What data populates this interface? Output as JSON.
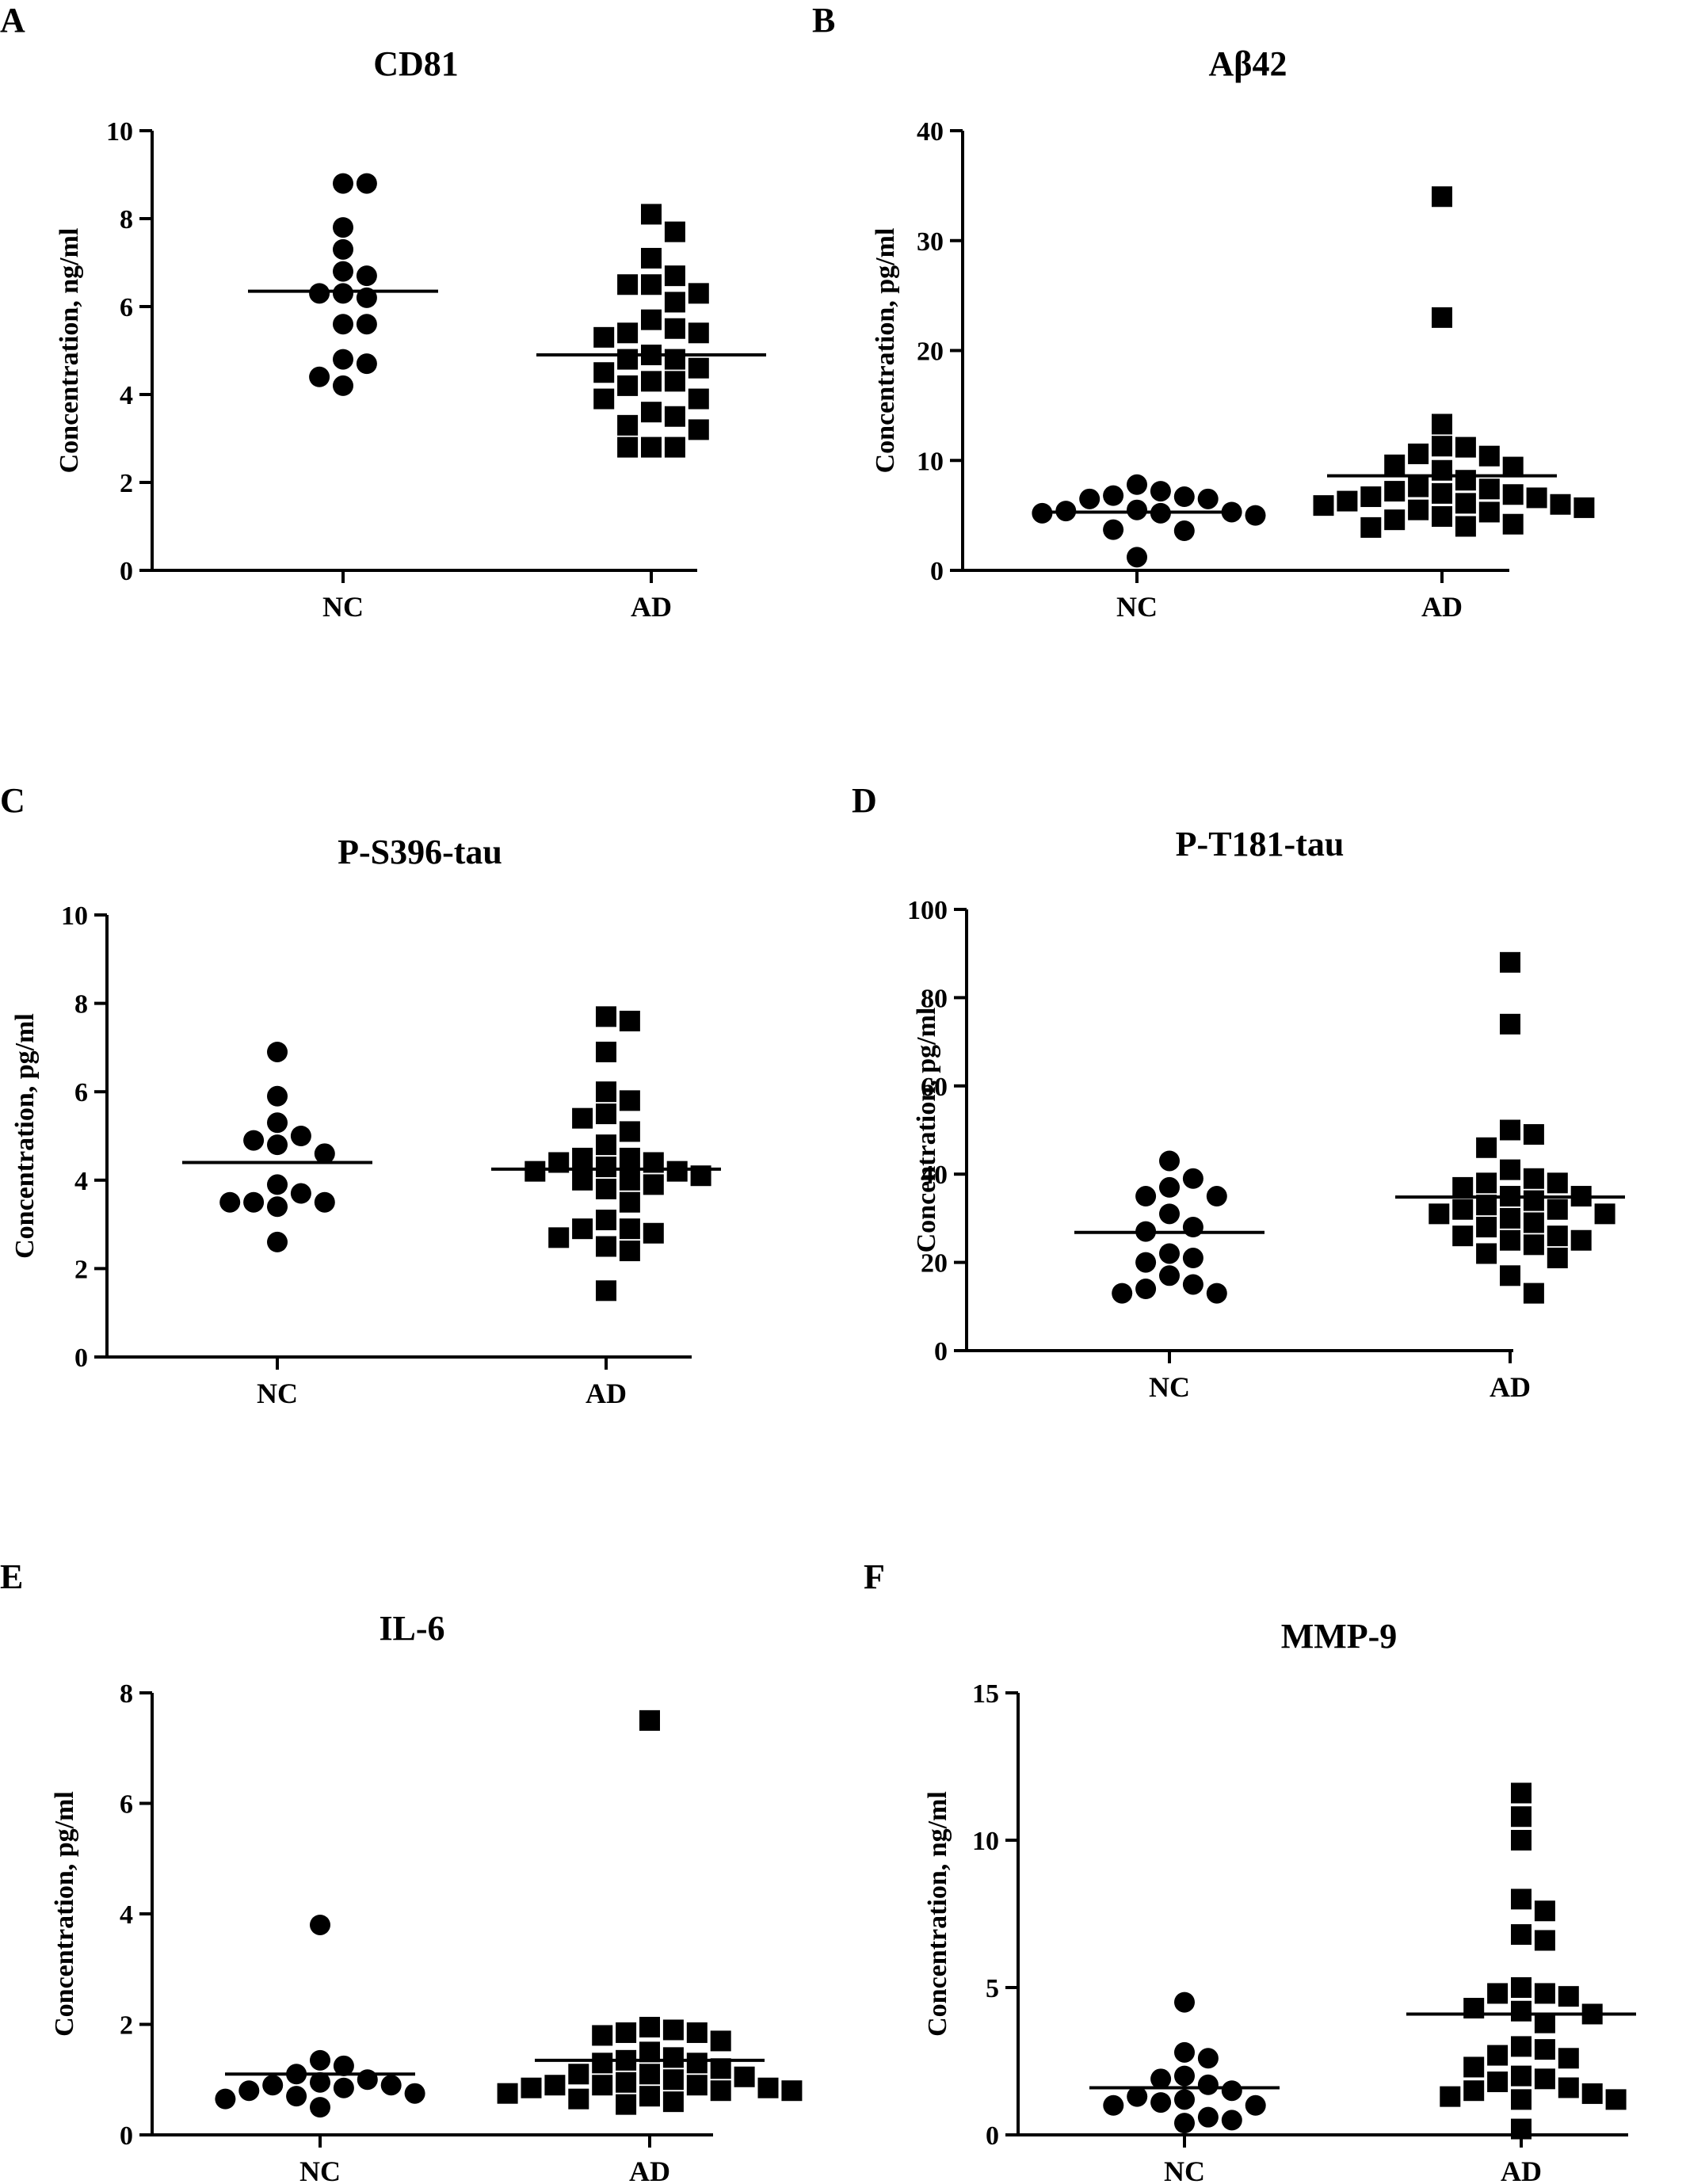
{
  "chart_data": [
    {
      "type": "scatter",
      "panel": "A",
      "title": "CD81",
      "ylabel": "Concentration, ng/ml",
      "categories": [
        "NC",
        "AD"
      ],
      "ylim": [
        0,
        10
      ],
      "yticks": [
        0,
        2,
        4,
        6,
        8,
        10
      ],
      "series": [
        {
          "name": "NC",
          "marker": "circle",
          "values": [
            8.8,
            8.8,
            7.8,
            7.3,
            6.8,
            6.7,
            6.3,
            6.2,
            6.3,
            5.6,
            5.6,
            4.8,
            4.7,
            4.4,
            4.2
          ],
          "mean": 6.35
        },
        {
          "name": "AD",
          "marker": "square",
          "values": [
            8.1,
            7.7,
            7.1,
            6.7,
            6.5,
            6.5,
            6.3,
            6.1,
            5.7,
            5.5,
            5.4,
            5.4,
            5.3,
            4.9,
            4.8,
            4.8,
            4.6,
            4.5,
            4.3,
            4.3,
            4.2,
            3.9,
            3.9,
            3.6,
            3.5,
            3.3,
            3.2,
            2.8,
            2.8,
            2.8
          ],
          "mean": 4.9
        }
      ]
    },
    {
      "type": "scatter",
      "panel": "B",
      "title": "Aβ42",
      "ylabel": "Concentration, pg/ml",
      "categories": [
        "NC",
        "AD"
      ],
      "ylim": [
        0,
        40
      ],
      "yticks": [
        0,
        10,
        20,
        30,
        40
      ],
      "series": [
        {
          "name": "NC",
          "marker": "circle",
          "values": [
            7.2,
            7.8,
            6.8,
            6.7,
            6.5,
            6.5,
            5.5,
            5.4,
            5.3,
            5.2,
            5.2,
            5.0,
            3.7,
            3.6,
            1.2
          ],
          "mean": 5.3
        },
        {
          "name": "AD",
          "marker": "square",
          "values": [
            34.0,
            23.0,
            13.3,
            11.3,
            11.2,
            10.6,
            10.4,
            9.6,
            9.4,
            9.1,
            8.2,
            7.6,
            7.4,
            7.2,
            7.0,
            6.9,
            6.7,
            6.6,
            6.3,
            6.1,
            6.0,
            5.9,
            5.7,
            5.5,
            5.3,
            4.9,
            4.6,
            4.2,
            4.0,
            3.9
          ],
          "mean": 8.6
        }
      ]
    },
    {
      "type": "scatter",
      "panel": "C",
      "title": "P-S396-tau",
      "ylabel": "Concentration, pg/ml",
      "categories": [
        "NC",
        "AD"
      ],
      "ylim": [
        0,
        10
      ],
      "yticks": [
        0,
        2,
        4,
        6,
        8,
        10
      ],
      "series": [
        {
          "name": "NC",
          "marker": "circle",
          "values": [
            6.9,
            5.9,
            5.3,
            5.0,
            4.9,
            4.8,
            4.6,
            3.9,
            3.7,
            3.5,
            3.5,
            3.5,
            3.4,
            2.6
          ],
          "mean": 4.4
        },
        {
          "name": "AD",
          "marker": "square",
          "values": [
            7.7,
            7.6,
            6.9,
            6.0,
            5.8,
            5.5,
            5.4,
            5.1,
            4.8,
            4.5,
            4.5,
            4.4,
            4.4,
            4.3,
            4.2,
            4.2,
            4.1,
            4.0,
            4.0,
            3.9,
            3.8,
            3.5,
            3.1,
            2.9,
            2.9,
            2.8,
            2.7,
            2.5,
            2.4,
            1.5
          ],
          "mean": 4.25
        }
      ]
    },
    {
      "type": "scatter",
      "panel": "D",
      "title": "P-T181-tau",
      "ylabel": "Concentration, pg/ml",
      "categories": [
        "NC",
        "AD"
      ],
      "ylim": [
        0,
        100
      ],
      "yticks": [
        0,
        20,
        40,
        60,
        80,
        100
      ],
      "series": [
        {
          "name": "NC",
          "marker": "circle",
          "values": [
            43,
            39,
            37,
            35,
            35,
            31,
            28,
            27,
            22,
            21,
            20,
            17,
            15,
            14,
            13,
            13
          ],
          "mean": 26.8
        },
        {
          "name": "AD",
          "marker": "square",
          "values": [
            88,
            74,
            50,
            49,
            46,
            41,
            39,
            38,
            38,
            37,
            35,
            35,
            34,
            33,
            32,
            32,
            31,
            31,
            30,
            29,
            28,
            26,
            26,
            25,
            25,
            24,
            22,
            21,
            17,
            13
          ],
          "mean": 34.8
        }
      ]
    },
    {
      "type": "scatter",
      "panel": "E",
      "title": "IL-6",
      "ylabel": "Concentration, pg/ml",
      "categories": [
        "NC",
        "AD"
      ],
      "ylim": [
        0,
        8
      ],
      "yticks": [
        0,
        2,
        4,
        6,
        8
      ],
      "series": [
        {
          "name": "NC",
          "marker": "circle",
          "values": [
            3.8,
            1.35,
            1.25,
            1.1,
            1.0,
            0.95,
            0.9,
            0.9,
            0.85,
            0.8,
            0.75,
            0.7,
            0.65,
            0.5
          ],
          "mean": 1.1
        },
        {
          "name": "AD",
          "marker": "square",
          "values": [
            7.5,
            1.95,
            1.9,
            1.85,
            1.85,
            1.8,
            1.7,
            1.5,
            1.4,
            1.35,
            1.3,
            1.3,
            1.2,
            1.1,
            1.1,
            1.05,
            1.0,
            0.95,
            0.9,
            0.9,
            0.9,
            0.85,
            0.85,
            0.8,
            0.8,
            0.75,
            0.7,
            0.65,
            0.6,
            0.55
          ],
          "mean": 1.35
        }
      ]
    },
    {
      "type": "scatter",
      "panel": "F",
      "title": "MMP-9",
      "ylabel": "Concentration, ng/ml",
      "categories": [
        "NC",
        "AD"
      ],
      "ylim": [
        0,
        15
      ],
      "yticks": [
        0,
        5,
        10,
        15
      ],
      "series": [
        {
          "name": "NC",
          "marker": "circle",
          "values": [
            4.5,
            2.8,
            2.6,
            2.0,
            1.9,
            1.7,
            1.5,
            1.3,
            1.2,
            1.1,
            1.0,
            1.0,
            0.6,
            0.5,
            0.4
          ],
          "mean": 1.6
        },
        {
          "name": "AD",
          "marker": "square",
          "values": [
            11.6,
            10.8,
            10.0,
            8.0,
            7.6,
            6.8,
            6.6,
            5.0,
            4.8,
            4.8,
            4.7,
            4.3,
            4.2,
            4.1,
            3.8,
            3.0,
            2.9,
            2.7,
            2.6,
            2.3,
            2.0,
            1.9,
            1.8,
            1.6,
            1.5,
            1.4,
            1.3,
            1.2,
            1.2,
            0.2
          ],
          "mean": 4.1
        }
      ]
    }
  ]
}
